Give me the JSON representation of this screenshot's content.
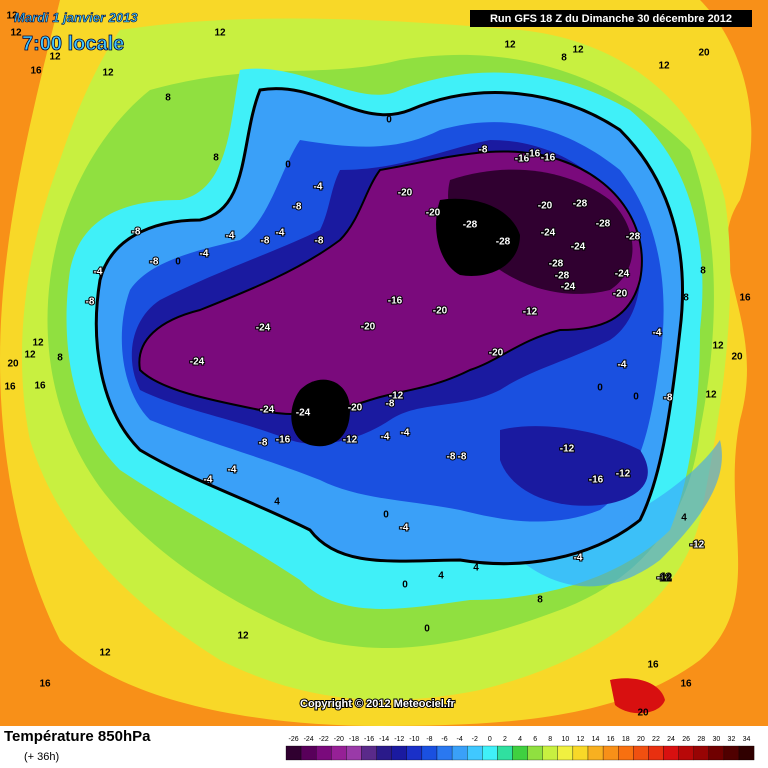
{
  "header": {
    "date": "Mardi 1 janvier 2013",
    "time": "7:00 locale",
    "run": "Run GFS 18 Z du Dimanche 30 décembre 2012",
    "copyright": "Copyright © 2012 Meteociel.fr"
  },
  "footer": {
    "title": "Température 850hPa",
    "lead": "(+ 36h)"
  },
  "scale": {
    "values": [
      -26,
      -24,
      -22,
      -20,
      -18,
      -16,
      -14,
      -12,
      -10,
      -8,
      -6,
      -4,
      -2,
      0,
      2,
      4,
      6,
      8,
      10,
      12,
      14,
      16,
      18,
      20,
      22,
      24,
      26,
      28,
      30,
      32,
      34
    ],
    "colors": [
      "#300030",
      "#58005a",
      "#7a0a7c",
      "#962096",
      "#9a3aa8",
      "#5a2a8a",
      "#2a1a8a",
      "#1a1aa0",
      "#1a30c8",
      "#1a50e0",
      "#2a78f0",
      "#3aa0f8",
      "#40c8ff",
      "#40f0f8",
      "#30e0a0",
      "#40d040",
      "#90e040",
      "#c8f040",
      "#f0f040",
      "#f8d828",
      "#f8b020",
      "#f89018",
      "#f87010",
      "#f05010",
      "#e83010",
      "#d81010",
      "#b80808",
      "#980404",
      "#700000",
      "#500000",
      "#300000"
    ]
  },
  "contour_labels": [
    -28,
    -28,
    -20,
    -28,
    -28,
    -28,
    -24,
    -24,
    -28,
    -28,
    -24,
    -24,
    -20,
    -20,
    -20,
    -16,
    -20,
    -20,
    -12,
    -20,
    -24,
    -24,
    -24,
    -24,
    -20,
    -16,
    -12,
    -12,
    -8,
    -8,
    -4,
    -4,
    -8,
    -8,
    -12,
    -16,
    -12,
    -4,
    4,
    -12,
    -12,
    -8,
    -8,
    -4,
    0,
    -4,
    -8,
    -4,
    -8,
    -4,
    -8,
    -4,
    -8,
    0,
    -8,
    -16,
    -16,
    -16,
    0,
    8,
    12,
    12,
    20,
    12,
    8,
    8,
    16,
    -4,
    12,
    20,
    12,
    -8,
    0,
    -4,
    0,
    12,
    20,
    16,
    16,
    12,
    8,
    -4,
    -4,
    4,
    0,
    -4,
    0,
    0,
    4,
    4,
    8,
    12,
    16,
    16,
    20,
    12,
    16,
    12,
    12,
    16,
    12,
    12,
    8,
    8,
    12,
    12
  ]
}
